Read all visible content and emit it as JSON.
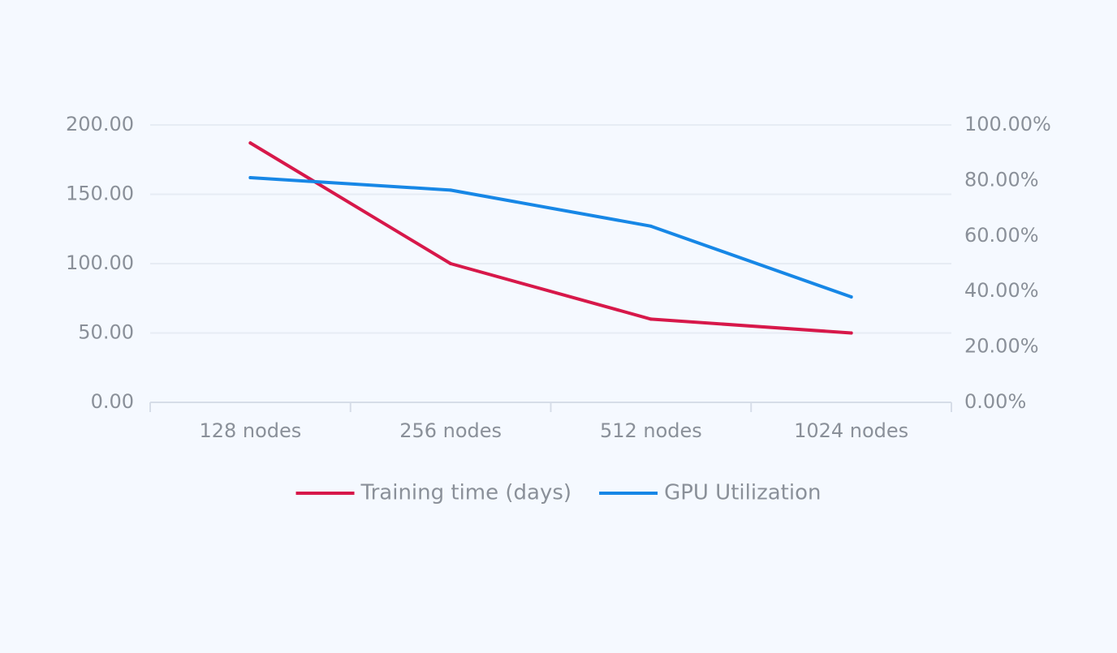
{
  "chart_data": {
    "type": "line",
    "categories": [
      "128 nodes",
      "256 nodes",
      "512 nodes",
      "1024 nodes"
    ],
    "series": [
      {
        "name": "Training time (days)",
        "axis": "left",
        "color": "#d7184a",
        "values": [
          187,
          100,
          60,
          50
        ]
      },
      {
        "name": "GPU Utilization",
        "axis": "right",
        "color": "#1787e6",
        "values": [
          0.81,
          0.765,
          0.635,
          0.38
        ]
      }
    ],
    "y_left": {
      "range": [
        0,
        200
      ],
      "ticks": [
        0,
        50,
        100,
        150,
        200
      ],
      "tick_labels": [
        "0.00",
        "50.00",
        "100.00",
        "150.00",
        "200.00"
      ]
    },
    "y_right": {
      "range": [
        0,
        1
      ],
      "ticks": [
        0,
        0.2,
        0.4,
        0.6,
        0.8,
        1.0
      ],
      "tick_labels": [
        "0.00%",
        "20.00%",
        "40.00%",
        "60.00%",
        "80.00%",
        "100.00%"
      ]
    },
    "grid": true,
    "legend_position": "bottom-center",
    "colors": {
      "grid": "#e6ecf4",
      "axis": "#d6dde8",
      "text": "#8a9099"
    }
  }
}
